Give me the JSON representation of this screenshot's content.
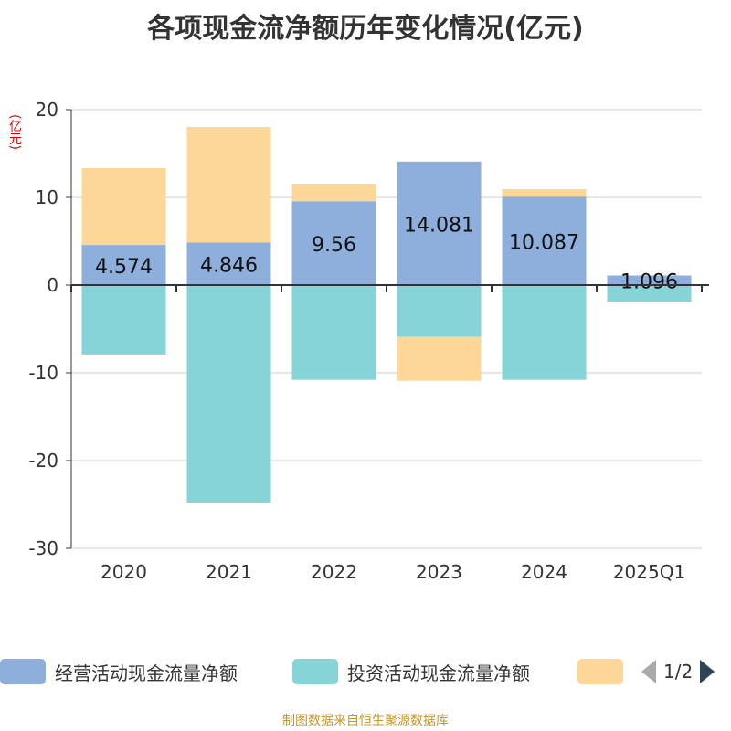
{
  "chart_data": {
    "type": "bar",
    "stacked": true,
    "title": "各项现金流净额历年变化情况(亿元)",
    "ylabel": "(亿元)",
    "categories": [
      "2020",
      "2021",
      "2022",
      "2023",
      "2024",
      "2025Q1"
    ],
    "ylim": [
      -30,
      20
    ],
    "yticks": [
      "20",
      "10",
      "0",
      "-10",
      "-20",
      "-30"
    ],
    "series": [
      {
        "name": "经营活动现金流量净额",
        "color": "#8eaedb",
        "values": [
          4.574,
          4.846,
          9.56,
          14.081,
          10.087,
          1.096
        ],
        "labels": [
          "4.574",
          "4.846",
          "9.56",
          "14.081",
          "10.087",
          "1.096"
        ]
      },
      {
        "name": "投资活动现金流量净额",
        "color": "#86d4d8",
        "values": [
          -7.9,
          -24.8,
          -10.8,
          -5.9,
          -10.8,
          -1.9
        ]
      },
      {
        "name": "",
        "color": "#fdd797",
        "values": [
          8.76,
          13.18,
          2.0,
          -5.0,
          0.85,
          0
        ]
      }
    ],
    "legend_page": "1/2"
  },
  "source": "制图数据来自恒生聚源数据库"
}
